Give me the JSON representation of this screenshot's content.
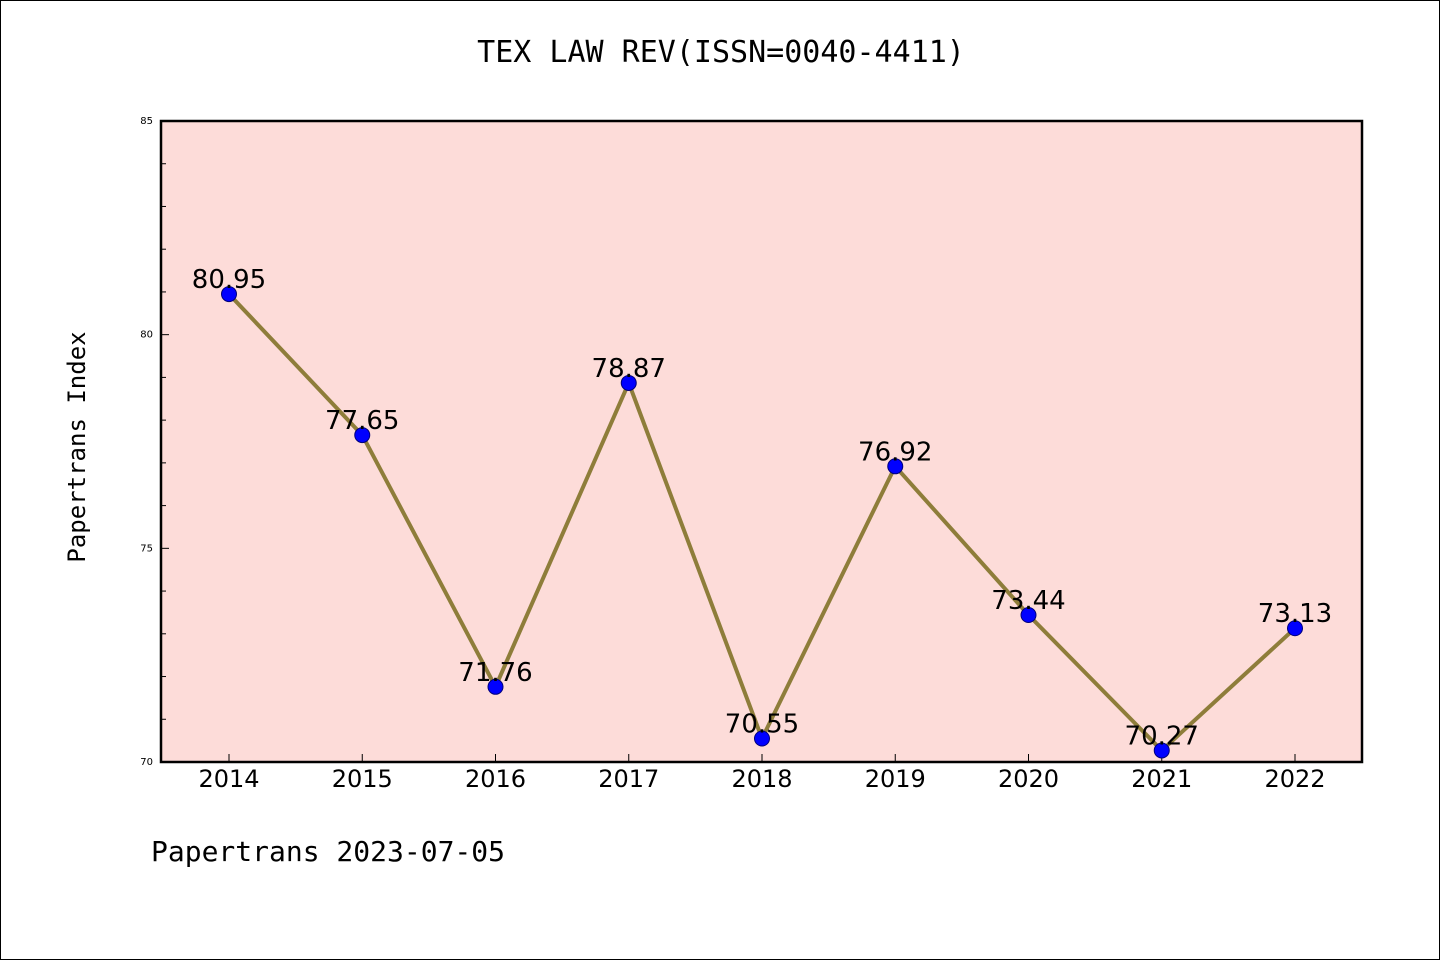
{
  "chart_data": {
    "type": "line",
    "title": "TEX LAW REV(ISSN=0040-4411)",
    "xlabel": "",
    "ylabel": "Papertrans Index",
    "categories": [
      "2014",
      "2015",
      "2016",
      "2017",
      "2018",
      "2019",
      "2020",
      "2021",
      "2022"
    ],
    "series": [
      {
        "values": [
          80.95,
          77.65,
          71.76,
          78.87,
          70.55,
          76.92,
          73.44,
          70.27,
          73.13
        ],
        "data_labels": [
          "80.95",
          "77.65",
          "71.76",
          "78.87",
          "70.55",
          "76.92",
          "73.44",
          "70.27",
          "73.13"
        ]
      }
    ],
    "ylim": [
      70,
      85
    ],
    "yticks": [
      "70",
      "75",
      "80",
      "85"
    ],
    "grid": false,
    "legend": "none",
    "colors": {
      "plot_background": "#fddcd9",
      "line": "#8e7d3a",
      "marker": "#0000ff"
    }
  },
  "footer": "Papertrans 2023-07-05"
}
